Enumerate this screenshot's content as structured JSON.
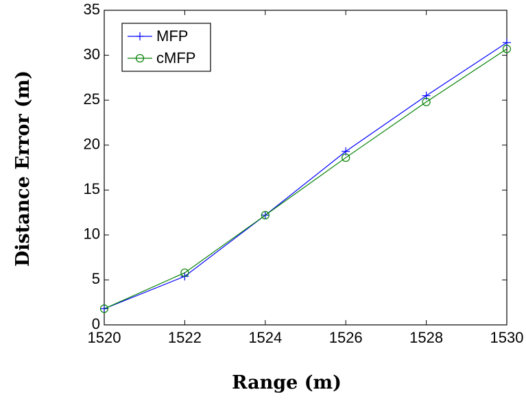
{
  "chart_data": {
    "type": "line",
    "title": "",
    "xlabel": "Range (m)",
    "ylabel": "Distance Error (m)",
    "xlim": [
      1520,
      1530
    ],
    "ylim": [
      0,
      35
    ],
    "xticks": [
      1520,
      1522,
      1524,
      1526,
      1528,
      1530
    ],
    "yticks": [
      0,
      5,
      10,
      15,
      20,
      25,
      30,
      35
    ],
    "grid": false,
    "legend_position": "top-left",
    "x": [
      1520,
      1522,
      1524,
      1526,
      1528,
      1530
    ],
    "series": [
      {
        "name": "MFP",
        "values": [
          1.8,
          5.4,
          12.2,
          19.3,
          25.5,
          31.4
        ],
        "color": "#0000ff",
        "marker": "plus"
      },
      {
        "name": "cMFP",
        "values": [
          1.8,
          5.8,
          12.2,
          18.6,
          24.8,
          30.7
        ],
        "color": "#008000",
        "marker": "circle"
      }
    ]
  }
}
